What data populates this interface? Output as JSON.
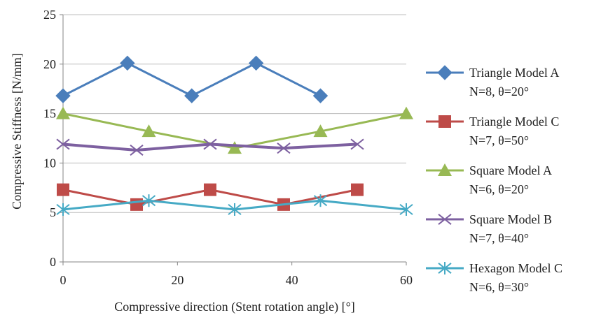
{
  "chart_data": {
    "type": "line",
    "xlabel": "Compressive direction (Stent rotation angle) [°]",
    "ylabel": "Compressive Stiffness [N/mm]",
    "xlim": [
      0,
      60
    ],
    "ylim": [
      0,
      25
    ],
    "x_ticks": [
      "0",
      "20",
      "40",
      "60"
    ],
    "y_ticks": [
      "0",
      "5",
      "10",
      "15",
      "20",
      "25"
    ],
    "grid": "horizontal",
    "legend_position": "right",
    "series": [
      {
        "name": "Triangle Model A",
        "name_line2": "N=8, θ=20°",
        "color": "#4a7ebb",
        "marker": "diamond",
        "x": [
          0,
          11.25,
          22.5,
          33.75,
          45
        ],
        "y": [
          16.8,
          20.1,
          16.8,
          20.1,
          16.8
        ]
      },
      {
        "name": "Triangle Model C",
        "name_line2": "N=7, θ=50°",
        "color": "#be4b48",
        "marker": "square",
        "x": [
          0,
          12.86,
          25.71,
          38.57,
          51.43
        ],
        "y": [
          7.3,
          5.8,
          7.3,
          5.8,
          7.3
        ]
      },
      {
        "name": "Square Model A",
        "name_line2": "N=6, θ=20°",
        "color": "#98b954",
        "marker": "triangle",
        "x": [
          0,
          15,
          30,
          45,
          60
        ],
        "y": [
          15.0,
          13.2,
          11.5,
          13.2,
          15.0
        ]
      },
      {
        "name": "Square Model B",
        "name_line2": "N=7, θ=40°",
        "color": "#7d60a0",
        "marker": "x",
        "x": [
          0,
          12.86,
          25.71,
          38.57,
          51.43
        ],
        "y": [
          11.9,
          11.3,
          11.9,
          11.5,
          11.9
        ]
      },
      {
        "name": "Hexagon Model C",
        "name_line2": "N=6, θ=30°",
        "color": "#46aac5",
        "marker": "asterisk",
        "x": [
          0,
          15,
          30,
          45,
          60
        ],
        "y": [
          5.3,
          6.2,
          5.3,
          6.2,
          5.3
        ]
      }
    ]
  }
}
